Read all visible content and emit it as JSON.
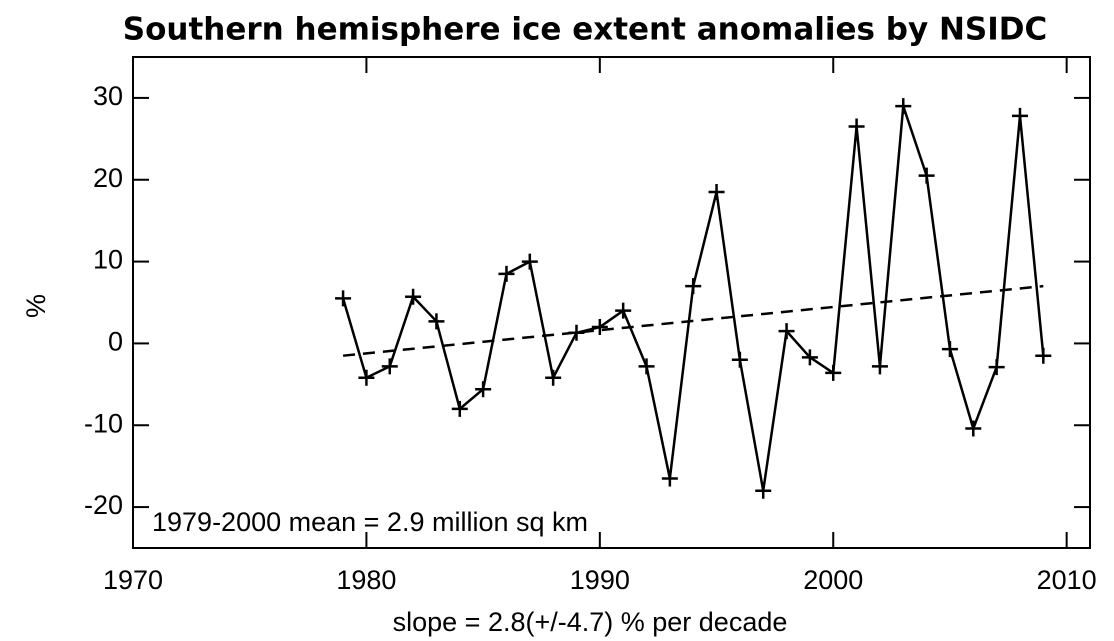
{
  "chart_data": {
    "type": "line",
    "title": "Southern hemisphere ice extent anomalies by NSIDC",
    "y_label": "%",
    "x_label": "slope =   2.8(+/-4.7) % per decade",
    "annotation": "1979-2000 mean =   2.9 million sq km",
    "x": [
      1979,
      1980,
      1981,
      1982,
      1983,
      1984,
      1985,
      1986,
      1987,
      1988,
      1989,
      1990,
      1991,
      1992,
      1993,
      1994,
      1995,
      1996,
      1997,
      1998,
      1999,
      2000,
      2001,
      2002,
      2003,
      2004,
      2005,
      2006,
      2007,
      2008,
      2009
    ],
    "series": [
      {
        "color": "#000000",
        "values": [
          5.5,
          -4.2,
          -2.8,
          5.7,
          2.7,
          -8,
          -5.6,
          8.5,
          10,
          -4.2,
          1.3,
          2,
          4,
          -2.8,
          -16.5,
          7,
          18.5,
          -2,
          -18,
          1.5,
          -1.7,
          -3.6,
          26.5,
          -2.8,
          29,
          20.5,
          -0.7,
          -10.4,
          -2.9,
          27.8,
          -1.5
        ]
      }
    ],
    "trend_line": {
      "x": [
        1979,
        2009
      ],
      "values": [
        -1.5,
        7
      ]
    },
    "xlim": [
      1970,
      2011
    ],
    "xticks": [
      1970,
      1980,
      1990,
      2000,
      2010
    ],
    "ylim": [
      -25,
      35
    ],
    "yticks": [
      -20,
      -10,
      0,
      10,
      20,
      30
    ]
  }
}
